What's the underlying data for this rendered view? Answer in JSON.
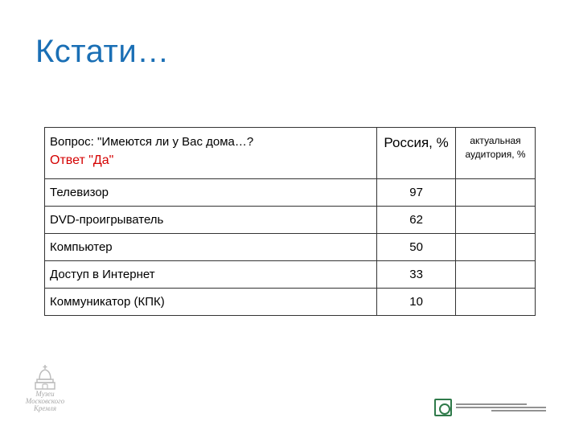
{
  "slide": {
    "title": "Кстати…"
  },
  "table": {
    "question": "Вопрос: \"Имеются ли у Вас дома…?",
    "answer": "Ответ \"Да\"",
    "col_russia": "Россия, %",
    "col_audience": "актуальная аудитория, %",
    "rows": [
      {
        "label": "Телевизор",
        "russia": "97",
        "audience": ""
      },
      {
        "label": "DVD-проигрыватель",
        "russia": "62",
        "audience": ""
      },
      {
        "label": "Компьютер",
        "russia": "50",
        "audience": ""
      },
      {
        "label": "Доступ в Интернет",
        "russia": "33",
        "audience": ""
      },
      {
        "label": "Коммуникатор (КПК)",
        "russia": "10",
        "audience": ""
      }
    ]
  },
  "footer": {
    "museum_logo_text": [
      "Музеи",
      "Московского",
      "Кремля"
    ],
    "center_logo_icon": "research-center-logo-icon"
  }
}
